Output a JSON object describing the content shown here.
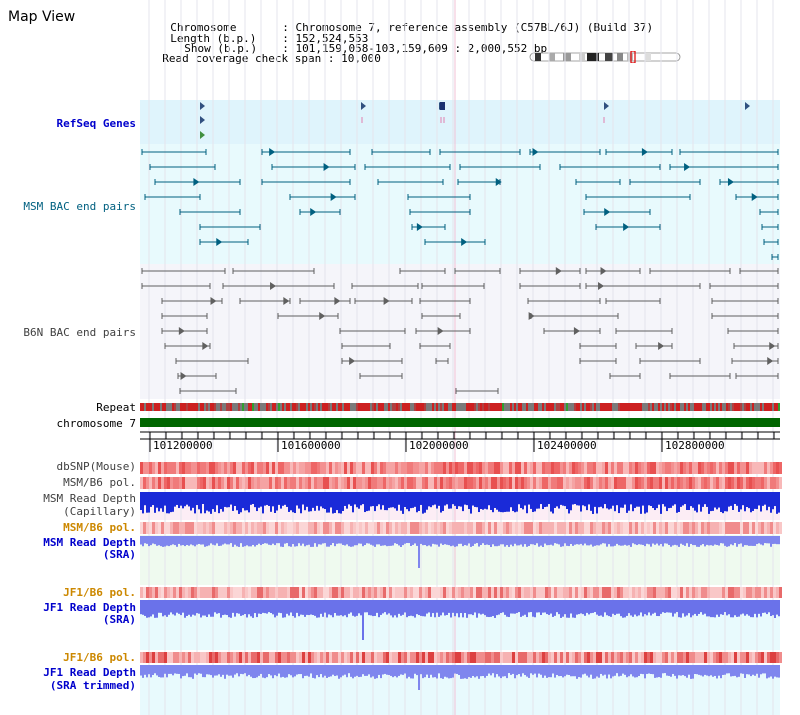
{
  "page": {
    "title": "Map View"
  },
  "info": {
    "chromosome_label": "Chromosome",
    "chromosome_value": "Chromosome 7, reference assembly (C57BL/6J) (Build 37)",
    "length_label": "Length (b.p.)",
    "length_value": "152,524,553",
    "show_label": "Show (b.p.)",
    "show_value": "101,159,058-103,159,609 : 2,000,552 bp",
    "coverage_label": "Read coverage check span",
    "coverage_value": "10,000"
  },
  "tracks": {
    "refseq": "RefSeq Genes",
    "msm_bac": "MSM BAC end pairs",
    "b6n_bac": "B6N BAC end pairs",
    "repeat": "Repeat",
    "chromosome": "chromosome 7",
    "dbsnp": "dbSNP(Mouse)",
    "msm_b6_pol_1": "MSM/B6 pol.",
    "msm_read_depth_cap_1": "MSM Read Depth",
    "msm_read_depth_cap_2": "(Capillary)",
    "msm_b6_pol_2": "MSM/B6 pol.",
    "msm_read_depth_sra_1": "MSM Read Depth",
    "msm_read_depth_sra_2": "(SRA)",
    "jf1_b6_pol_1": "JF1/B6 pol.",
    "jf1_read_depth_sra_1": "JF1 Read Depth",
    "jf1_read_depth_sra_2": "(SRA)",
    "jf1_b6_pol_2": "JF1/B6 pol.",
    "jf1_read_depth_trim_1": "JF1 Read Depth",
    "jf1_read_depth_trim_2": "(SRA trimmed)"
  },
  "axis": {
    "ticks": [
      "101200000",
      "101600000",
      "102000000",
      "102400000",
      "102800000"
    ]
  },
  "colors": {
    "refseq_bg": "#dff4fc",
    "msm_bg": "#e8fafd",
    "b6n_bg": "#f5f5fa",
    "teal": "#006080",
    "gray": "#606060",
    "chromosome_bar": "#006600",
    "depth_blue": "#1a2ad8",
    "depth_light": "#7f86ee"
  }
}
